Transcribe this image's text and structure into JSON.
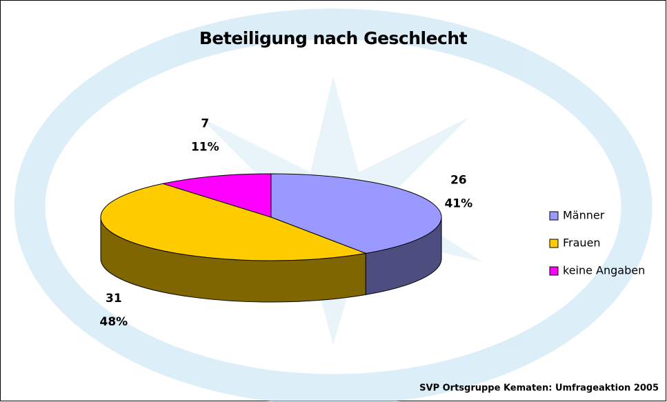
{
  "chart_data": {
    "type": "pie",
    "title": "Beteiligung nach Geschlecht",
    "categories": [
      "Männer",
      "Frauen",
      "keine Angaben"
    ],
    "values": [
      26,
      31,
      7
    ],
    "percent_labels": [
      "41%",
      "48%",
      "11%"
    ],
    "colors": [
      "#9999ff",
      "#ffcc00",
      "#ff00ff"
    ],
    "legend": "right",
    "source": "SVP Ortsgruppe Kematen: Umfrageaktion 2005"
  }
}
